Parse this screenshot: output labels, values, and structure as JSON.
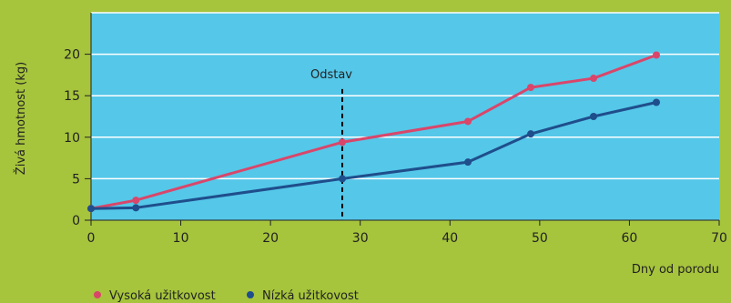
{
  "chart_data": {
    "type": "line",
    "xlabel": "Dny od porodu",
    "ylabel": "Živá hmotnost (kg)",
    "xlim": [
      0,
      70
    ],
    "ylim": [
      0,
      25
    ],
    "x_ticks": [
      0,
      10,
      20,
      30,
      40,
      50,
      60,
      70
    ],
    "y_ticks": [
      0,
      5,
      10,
      15,
      20
    ],
    "grid": "horizontal",
    "legend_position": "bottom-left",
    "series": [
      {
        "name": "Vysoká užitkovost",
        "color": "#d9466a",
        "x": [
          0,
          5,
          28,
          42,
          49,
          56,
          63
        ],
        "y": [
          1.4,
          2.4,
          9.4,
          11.9,
          16.0,
          17.1,
          19.9
        ]
      },
      {
        "name": "Nízká užitkovost",
        "color": "#1f4e8c",
        "x": [
          0,
          5,
          28,
          42,
          49,
          56,
          63
        ],
        "y": [
          1.4,
          1.5,
          5.0,
          7.0,
          10.4,
          12.5,
          14.2
        ]
      }
    ],
    "annotations": [
      {
        "label": "Odstav",
        "x": 28,
        "style": "dashed-vertical-line",
        "y_top": 15.8
      }
    ],
    "colors": {
      "plot_background": "#55c7e8",
      "page_background": "#a6c43c",
      "grid": "#ffffff"
    }
  }
}
